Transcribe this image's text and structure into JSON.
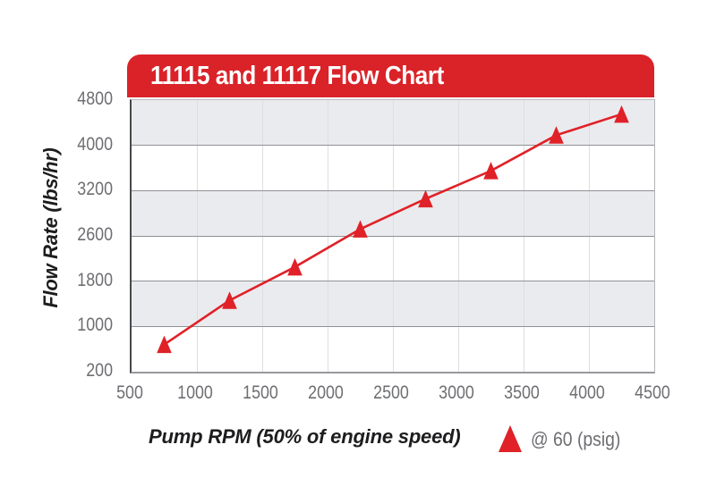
{
  "banner": {
    "title": "11115 and 11117 Flow Chart"
  },
  "y_axis": {
    "title": "Flow Rate (lbs/hr)",
    "ticks": [
      "4800",
      "4000",
      "3200",
      "2600",
      "1800",
      "1000",
      "200"
    ]
  },
  "x_axis": {
    "title": "Pump RPM (50% of engine speed)",
    "ticks": [
      "500",
      "1000",
      "1500",
      "2000",
      "2500",
      "3000",
      "3500",
      "4000",
      "4500"
    ]
  },
  "legend": {
    "marker": "triangle-up-icon",
    "label": "@ 60 (psig)"
  },
  "colors": {
    "accent_red": "#d92329",
    "series_red": "#e02128",
    "band_gray": "#eaebee",
    "grid_dark": "#8f9194",
    "grid_light": "#dcdee1",
    "tick_gray": "#6d6e71",
    "text_dark": "#1d1d1f"
  },
  "chart_data": {
    "type": "line",
    "title": "11115 and 11117 Flow Chart",
    "xlabel": "Pump RPM (50% of engine speed)",
    "ylabel": "Flow Rate (lbs/hr)",
    "x_ticks": [
      500,
      1000,
      1500,
      2000,
      2500,
      3000,
      3500,
      4000,
      4500
    ],
    "y_ticks": [
      200,
      1000,
      1800,
      2600,
      3200,
      4000,
      4800
    ],
    "y_axis_note": "tick labels are equally spaced on screen despite non-uniform increments (as printed)",
    "xlim": [
      500,
      4500
    ],
    "grid": {
      "horizontal": true,
      "vertical": true,
      "banded_rows": true
    },
    "legend_position": "bottom-right",
    "series": [
      {
        "name": "@ 60 (psig)",
        "marker": "triangle-up",
        "color": "#e02128",
        "points": [
          {
            "rpm": 750,
            "flow": 680
          },
          {
            "rpm": 1250,
            "flow": 1460
          },
          {
            "rpm": 1750,
            "flow": 2050
          },
          {
            "rpm": 2250,
            "flow": 2690
          },
          {
            "rpm": 2750,
            "flow": 3090
          },
          {
            "rpm": 3250,
            "flow": 3550
          },
          {
            "rpm": 3750,
            "flow": 4180
          },
          {
            "rpm": 4250,
            "flow": 4550
          }
        ]
      }
    ]
  }
}
